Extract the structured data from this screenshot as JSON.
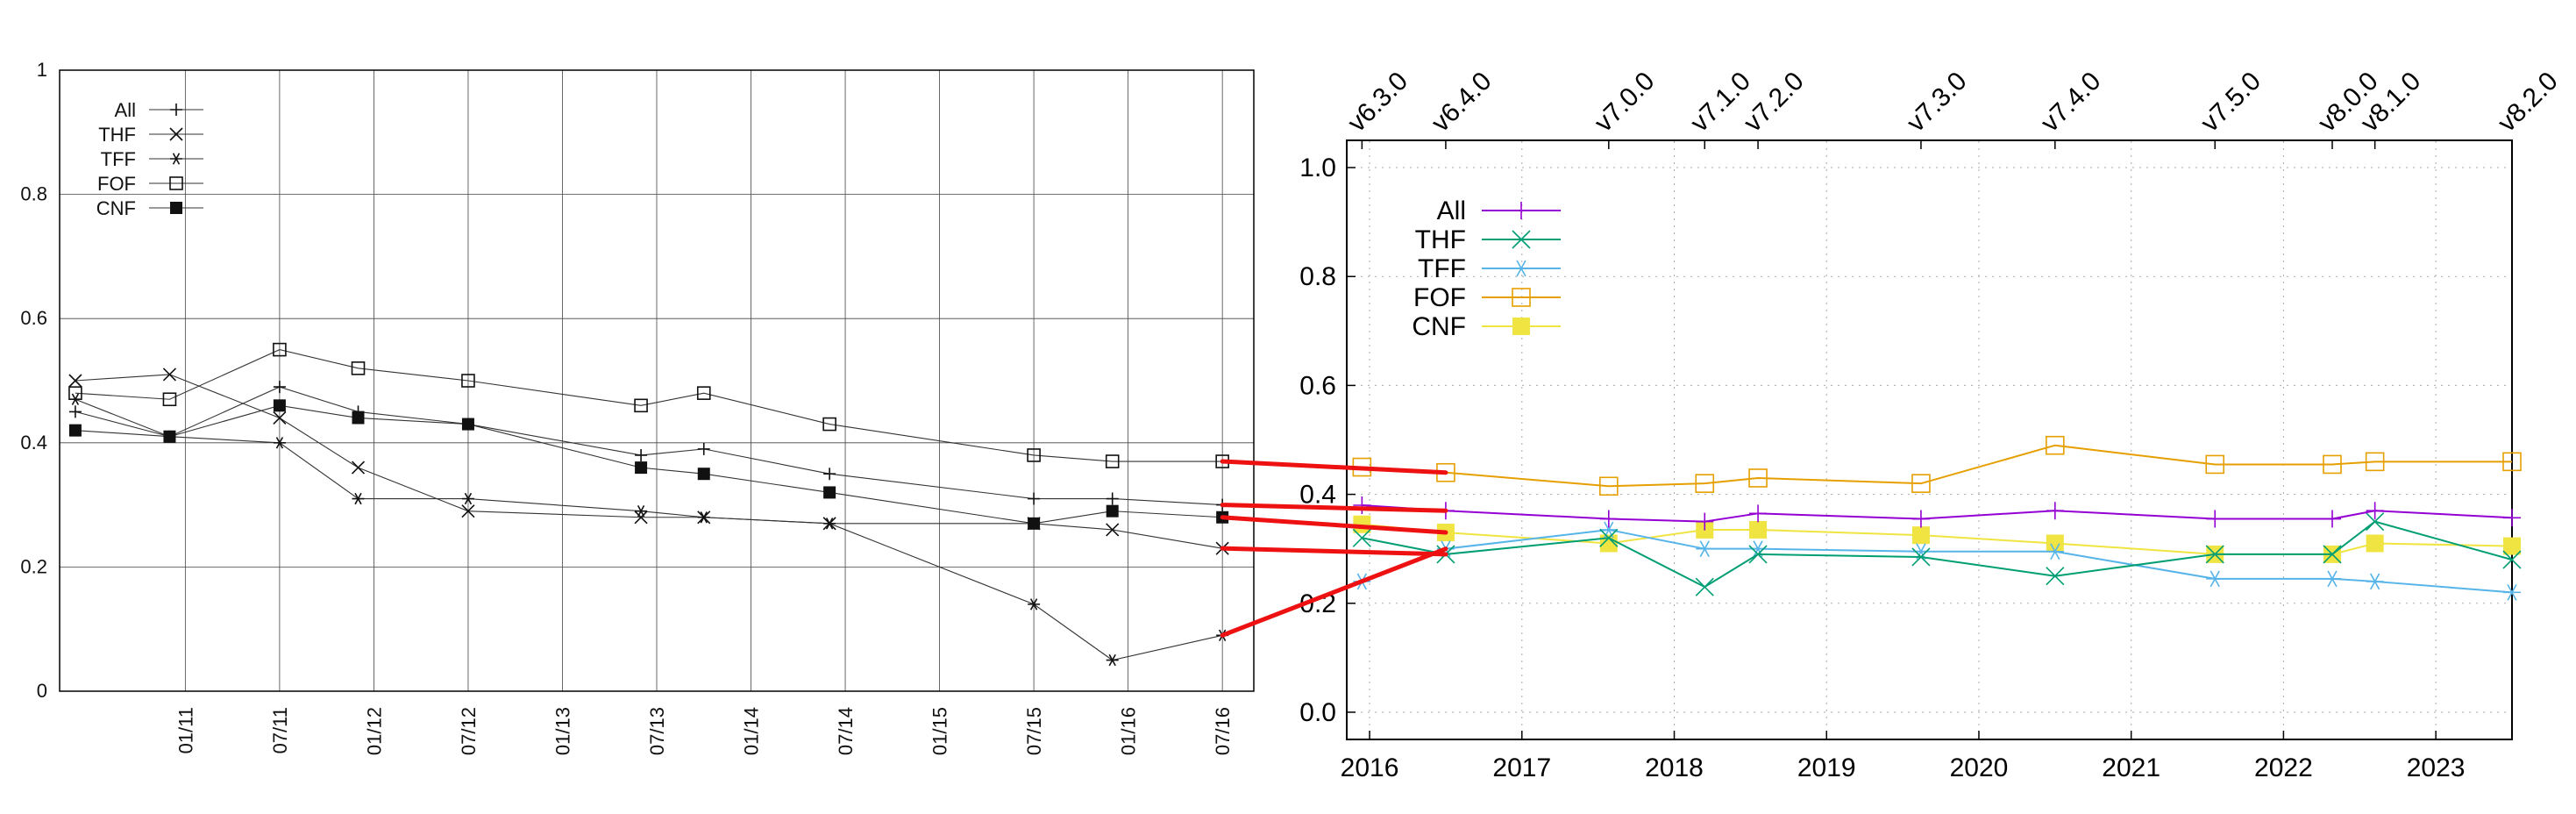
{
  "chart_data": [
    {
      "type": "line",
      "grid": true,
      "ylim": [
        0,
        1
      ],
      "yticks": [
        "0",
        "0.2",
        "0.4",
        "0.6",
        "0.8",
        "1"
      ],
      "xlim": [
        "2010-05",
        "2016-09"
      ],
      "xticks": [
        "01/11",
        "07/11",
        "01/12",
        "07/12",
        "01/13",
        "07/13",
        "01/14",
        "07/14",
        "01/15",
        "07/15",
        "01/16",
        "07/16"
      ],
      "legend_position": "top-left",
      "series": [
        {
          "name": "All",
          "marker": "plus",
          "points": [
            [
              "2010-06",
              0.45
            ],
            [
              "2010-12",
              0.41
            ],
            [
              "2011-07",
              0.49
            ],
            [
              "2011-12",
              0.45
            ],
            [
              "2012-07",
              0.43
            ],
            [
              "2013-06",
              0.38
            ],
            [
              "2013-10",
              0.39
            ],
            [
              "2014-06",
              0.35
            ],
            [
              "2015-07",
              0.31
            ],
            [
              "2015-12",
              0.31
            ],
            [
              "2016-07",
              0.3
            ]
          ]
        },
        {
          "name": "THF",
          "marker": "cross",
          "points": [
            [
              "2010-06",
              0.5
            ],
            [
              "2010-12",
              0.51
            ],
            [
              "2011-07",
              0.44
            ],
            [
              "2011-12",
              0.36
            ],
            [
              "2012-07",
              0.29
            ],
            [
              "2013-06",
              0.28
            ],
            [
              "2013-10",
              0.28
            ],
            [
              "2014-06",
              0.27
            ],
            [
              "2015-07",
              0.27
            ],
            [
              "2015-12",
              0.26
            ],
            [
              "2016-07",
              0.23
            ]
          ]
        },
        {
          "name": "TFF",
          "marker": "star",
          "points": [
            [
              "2010-06",
              0.47
            ],
            [
              "2010-12",
              0.41
            ],
            [
              "2011-07",
              0.4
            ],
            [
              "2011-12",
              0.31
            ],
            [
              "2012-07",
              0.31
            ],
            [
              "2013-06",
              0.29
            ],
            [
              "2013-10",
              0.28
            ],
            [
              "2014-06",
              0.27
            ],
            [
              "2015-07",
              0.14
            ],
            [
              "2015-12",
              0.05
            ],
            [
              "2016-07",
              0.09
            ]
          ]
        },
        {
          "name": "FOF",
          "marker": "open-square",
          "points": [
            [
              "2010-06",
              0.48
            ],
            [
              "2010-12",
              0.47
            ],
            [
              "2011-07",
              0.55
            ],
            [
              "2011-12",
              0.52
            ],
            [
              "2012-07",
              0.5
            ],
            [
              "2013-06",
              0.46
            ],
            [
              "2013-10",
              0.48
            ],
            [
              "2014-06",
              0.43
            ],
            [
              "2015-07",
              0.38
            ],
            [
              "2015-12",
              0.37
            ],
            [
              "2016-07",
              0.37
            ]
          ]
        },
        {
          "name": "CNF",
          "marker": "filled-square",
          "points": [
            [
              "2010-06",
              0.42
            ],
            [
              "2010-12",
              0.41
            ],
            [
              "2011-07",
              0.46
            ],
            [
              "2011-12",
              0.44
            ],
            [
              "2012-07",
              0.43
            ],
            [
              "2013-06",
              0.36
            ],
            [
              "2013-10",
              0.35
            ],
            [
              "2014-06",
              0.32
            ],
            [
              "2015-07",
              0.27
            ],
            [
              "2015-12",
              0.29
            ],
            [
              "2016-07",
              0.28
            ]
          ]
        }
      ]
    },
    {
      "type": "line",
      "grid": true,
      "ylim": [
        -0.05,
        1.05
      ],
      "yticks": [
        "0.0",
        "0.2",
        "0.4",
        "0.6",
        "0.8",
        "1.0"
      ],
      "xlim": [
        2015.85,
        2023.5
      ],
      "xticks": [
        "2016",
        "2017",
        "2018",
        "2019",
        "2020",
        "2021",
        "2022",
        "2023"
      ],
      "top_labels": [
        {
          "label": "v6.3.0",
          "x": 2015.95
        },
        {
          "label": "v6.4.0",
          "x": 2016.5
        },
        {
          "label": "v7.0.0",
          "x": 2017.57
        },
        {
          "label": "v7.1.0",
          "x": 2018.2
        },
        {
          "label": "v7.2.0",
          "x": 2018.55
        },
        {
          "label": "v7.3.0",
          "x": 2019.62
        },
        {
          "label": "v7.4.0",
          "x": 2020.5
        },
        {
          "label": "v7.5.0",
          "x": 2021.55
        },
        {
          "label": "v8.0.0",
          "x": 2022.32
        },
        {
          "label": "v8.1.0",
          "x": 2022.6
        },
        {
          "label": "v8.2.0",
          "x": 2023.5
        }
      ],
      "legend_position": "top-left",
      "colors": {
        "All": "#9400d3",
        "THF": "#009e73",
        "TFF": "#56b4e9",
        "FOF": "#e69f00",
        "CNF": "#f0e442"
      },
      "series": [
        {
          "name": "All",
          "marker": "plus",
          "points": [
            [
              2015.95,
              0.38
            ],
            [
              2016.5,
              0.37
            ],
            [
              2017.57,
              0.355
            ],
            [
              2018.2,
              0.35
            ],
            [
              2018.55,
              0.365
            ],
            [
              2019.62,
              0.355
            ],
            [
              2020.5,
              0.37
            ],
            [
              2021.55,
              0.355
            ],
            [
              2022.32,
              0.355
            ],
            [
              2022.6,
              0.37
            ],
            [
              2023.5,
              0.357
            ]
          ]
        },
        {
          "name": "THF",
          "marker": "cross",
          "points": [
            [
              2015.95,
              0.32
            ],
            [
              2016.5,
              0.29
            ],
            [
              2017.57,
              0.32
            ],
            [
              2018.2,
              0.23
            ],
            [
              2018.55,
              0.29
            ],
            [
              2019.62,
              0.285
            ],
            [
              2020.5,
              0.25
            ],
            [
              2021.55,
              0.29
            ],
            [
              2022.32,
              0.29
            ],
            [
              2022.6,
              0.35
            ],
            [
              2023.5,
              0.28
            ]
          ]
        },
        {
          "name": "TFF",
          "marker": "star",
          "points": [
            [
              2015.95,
              0.24
            ],
            [
              2016.5,
              0.3
            ],
            [
              2017.57,
              0.335
            ],
            [
              2018.2,
              0.3
            ],
            [
              2018.55,
              0.3
            ],
            [
              2019.62,
              0.295
            ],
            [
              2020.5,
              0.295
            ],
            [
              2021.55,
              0.245
            ],
            [
              2022.32,
              0.245
            ],
            [
              2022.6,
              0.24
            ],
            [
              2023.5,
              0.22
            ]
          ]
        },
        {
          "name": "FOF",
          "marker": "open-square",
          "points": [
            [
              2015.95,
              0.45
            ],
            [
              2016.5,
              0.44
            ],
            [
              2017.57,
              0.415
            ],
            [
              2018.2,
              0.42
            ],
            [
              2018.55,
              0.43
            ],
            [
              2019.62,
              0.42
            ],
            [
              2020.5,
              0.49
            ],
            [
              2021.55,
              0.455
            ],
            [
              2022.32,
              0.455
            ],
            [
              2022.6,
              0.46
            ],
            [
              2023.5,
              0.46
            ]
          ]
        },
        {
          "name": "CNF",
          "marker": "filled-square",
          "points": [
            [
              2015.95,
              0.345
            ],
            [
              2016.5,
              0.33
            ],
            [
              2017.57,
              0.31
            ],
            [
              2018.2,
              0.335
            ],
            [
              2018.55,
              0.335
            ],
            [
              2019.62,
              0.325
            ],
            [
              2020.5,
              0.31
            ],
            [
              2021.55,
              0.29
            ],
            [
              2022.32,
              0.29
            ],
            [
              2022.6,
              0.31
            ],
            [
              2023.5,
              0.305
            ]
          ]
        }
      ]
    }
  ],
  "connectors": {
    "color": "#ee1111",
    "links": [
      {
        "series": "FOF",
        "from": [
          "2016-07",
          0.37
        ],
        "to": [
          2016.5,
          0.44
        ]
      },
      {
        "series": "All",
        "from": [
          "2016-07",
          0.3
        ],
        "to": [
          2016.5,
          0.37
        ]
      },
      {
        "series": "CNF",
        "from": [
          "2016-07",
          0.28
        ],
        "to": [
          2016.5,
          0.33
        ]
      },
      {
        "series": "THF",
        "from": [
          "2016-07",
          0.23
        ],
        "to": [
          2016.5,
          0.29
        ]
      },
      {
        "series": "TFF",
        "from": [
          "2016-07",
          0.09
        ],
        "to": [
          2016.5,
          0.3
        ]
      }
    ]
  }
}
